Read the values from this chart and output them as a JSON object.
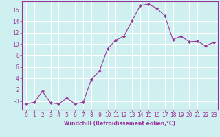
{
  "x": [
    0,
    1,
    2,
    3,
    4,
    5,
    6,
    7,
    8,
    9,
    10,
    11,
    12,
    13,
    14,
    15,
    16,
    17,
    18,
    19,
    20,
    21,
    22,
    23
  ],
  "y": [
    -0.5,
    -0.2,
    1.7,
    -0.3,
    -0.5,
    0.5,
    -0.5,
    -0.2,
    3.8,
    5.3,
    9.2,
    10.7,
    11.4,
    14.1,
    16.8,
    17.0,
    16.3,
    15.0,
    10.8,
    11.4,
    10.4,
    10.5,
    9.7,
    10.3
  ],
  "line_color": "#993399",
  "marker": "D",
  "marker_size": 2,
  "bg_color": "#cff0f0",
  "grid_color": "#ffffff",
  "xlabel": "Windchill (Refroidissement éolien,°C)",
  "tick_color": "#993399",
  "ylim": [
    -1.5,
    17.5
  ],
  "xlim": [
    -0.5,
    23.5
  ],
  "yticks": [
    0,
    2,
    4,
    6,
    8,
    10,
    12,
    14,
    16
  ],
  "xticks": [
    0,
    1,
    2,
    3,
    4,
    5,
    6,
    7,
    8,
    9,
    10,
    11,
    12,
    13,
    14,
    15,
    16,
    17,
    18,
    19,
    20,
    21,
    22,
    23
  ],
  "ytick_labels": [
    "-0",
    "2",
    "4",
    "6",
    "8",
    "10",
    "12",
    "14",
    "16"
  ],
  "font_size": 5.5
}
